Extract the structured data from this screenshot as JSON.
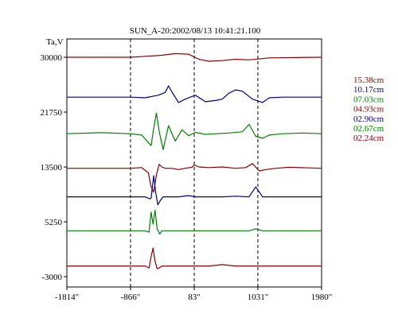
{
  "chart_data": {
    "type": "line",
    "title": "SUN_A-20:2002/08/13 10:41:21.100",
    "ylabel": "Ta,V",
    "xlabel": "",
    "x_ticks": [
      "-1814\"",
      "-866\"",
      "83\"",
      "1031\"",
      "1980\""
    ],
    "x_tick_values": [
      -1814,
      -866,
      83,
      1031,
      1980
    ],
    "y_ticks": [
      "30000",
      "21750",
      "13500",
      "5250",
      "-3000"
    ],
    "y_tick_values": [
      30000,
      21750,
      13500,
      5250,
      -3000
    ],
    "xlim": [
      -1814,
      1980
    ],
    "ylim": [
      -3000,
      30000
    ],
    "grid": "vertical dashed lines at -866\", 83\", 1031\"",
    "legend_placement": "right",
    "series": [
      {
        "name": "15.38cm",
        "color": "#8b0000",
        "offset": 30000,
        "x": [
          -1814,
          -866,
          -700,
          -400,
          -200,
          0,
          150,
          300,
          500,
          700,
          900,
          1200,
          1980
        ],
        "y": [
          0,
          0,
          100,
          300,
          550,
          450,
          -300,
          -600,
          -500,
          -300,
          -400,
          -100,
          0
        ]
      },
      {
        "name": "10.17cm",
        "color": "#00008b",
        "offset": 24000,
        "x": [
          -1814,
          -866,
          -650,
          -450,
          -350,
          -300,
          -250,
          -150,
          -50,
          100,
          250,
          400,
          500,
          600,
          700,
          800,
          950,
          1100,
          1200,
          1400,
          1980
        ],
        "y": [
          0,
          0,
          -100,
          300,
          700,
          1700,
          800,
          -800,
          -300,
          300,
          -700,
          -500,
          -300,
          600,
          1100,
          900,
          -300,
          -800,
          -100,
          0,
          0
        ]
      },
      {
        "name": "07.03cm",
        "color": "#008000",
        "offset": 18500,
        "x": [
          -1814,
          -1300,
          -866,
          -700,
          -560,
          -520,
          -480,
          -440,
          -380,
          -300,
          -200,
          -100,
          0,
          100,
          250,
          400,
          600,
          800,
          900,
          1000,
          1100,
          1200,
          1400,
          1700,
          1980
        ],
        "y": [
          0,
          150,
          0,
          -200,
          -1800,
          800,
          3100,
          400,
          -2400,
          1200,
          -1100,
          600,
          -300,
          200,
          -100,
          0,
          100,
          300,
          1400,
          -400,
          -700,
          -200,
          0,
          100,
          0
        ]
      },
      {
        "name": "04.93cm",
        "color": "#8b0000",
        "offset": 13300,
        "x": [
          -1814,
          -866,
          -700,
          -600,
          -560,
          -520,
          -480,
          -440,
          -400,
          -350,
          -250,
          -150,
          -50,
          50,
          83,
          150,
          300,
          500,
          700,
          850,
          950,
          1050,
          1150,
          1300,
          1500,
          1980
        ],
        "y": [
          0,
          0,
          100,
          -700,
          -2800,
          -3600,
          -1000,
          600,
          200,
          0,
          0,
          -200,
          0,
          150,
          500,
          200,
          100,
          200,
          0,
          100,
          700,
          -400,
          -200,
          0,
          150,
          0
        ]
      },
      {
        "name": "02.90cm",
        "color": "#00008b",
        "offset": 9000,
        "x": [
          -1814,
          -866,
          -650,
          -580,
          -560,
          -520,
          -490,
          -460,
          -420,
          -380,
          -300,
          -150,
          0,
          100,
          300,
          500,
          700,
          900,
          1000,
          1100,
          1300,
          1980
        ],
        "y": [
          0,
          0,
          0,
          -300,
          -200,
          3200,
          600,
          -1200,
          -500,
          0,
          0,
          0,
          200,
          0,
          0,
          0,
          100,
          0,
          1500,
          0,
          0,
          0
        ]
      },
      {
        "name": "02.67cm",
        "color": "#008000",
        "offset": 3900,
        "x": [
          -1814,
          -866,
          -650,
          -590,
          -560,
          -530,
          -500,
          -470,
          -430,
          -400,
          -300,
          -100,
          100,
          300,
          500,
          700,
          900,
          1000,
          1100,
          1300,
          1980
        ],
        "y": [
          0,
          0,
          0,
          -200,
          2800,
          1000,
          3100,
          300,
          -500,
          0,
          0,
          0,
          0,
          0,
          0,
          0,
          0,
          300,
          0,
          0,
          0
        ]
      },
      {
        "name": "02.24cm",
        "color": "#8b0000",
        "offset": -1400,
        "x": [
          -1814,
          -866,
          -650,
          -590,
          -560,
          -530,
          -500,
          -470,
          -440,
          -400,
          -300,
          -100,
          100,
          300,
          500,
          700,
          900,
          1100,
          1300,
          1980
        ],
        "y": [
          0,
          0,
          0,
          -300,
          1400,
          2700,
          700,
          -400,
          -300,
          0,
          0,
          0,
          0,
          0,
          200,
          0,
          0,
          0,
          0,
          0
        ]
      }
    ]
  }
}
